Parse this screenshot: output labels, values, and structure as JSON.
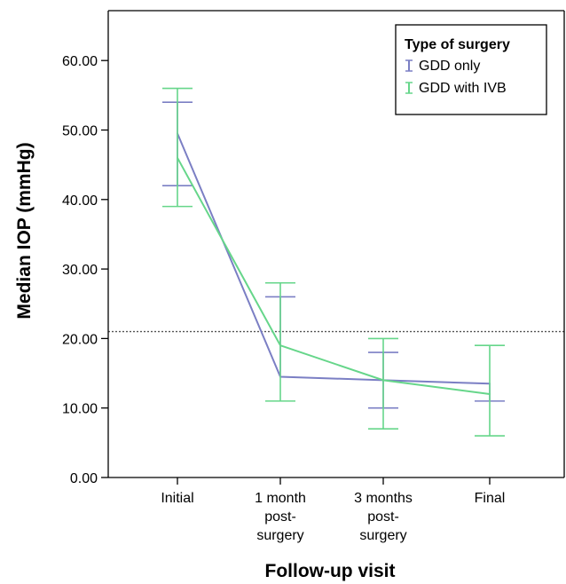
{
  "chart_data": {
    "type": "line",
    "xlabel": "Follow-up visit",
    "ylabel": "Median IOP (mmHg)",
    "ylim": [
      0,
      65
    ],
    "yticks": [
      "0.00",
      "10.00",
      "20.00",
      "30.00",
      "40.00",
      "50.00",
      "60.00"
    ],
    "categories": [
      [
        "Initial"
      ],
      [
        "1 month",
        "post-",
        "surgery"
      ],
      [
        "3 months",
        "post-",
        "surgery"
      ],
      [
        "Final"
      ]
    ],
    "reference_line": 21,
    "grid": false,
    "legend": {
      "title": "Type of surgery",
      "placement": "top-right"
    },
    "series": [
      {
        "name": "GDD only",
        "color": "#7b7fc4",
        "values": [
          49.5,
          14.5,
          14,
          13.5
        ],
        "error_high": [
          54,
          26,
          18,
          null
        ],
        "error_low": [
          42,
          null,
          10,
          11
        ]
      },
      {
        "name": "GDD with IVB",
        "color": "#66d68a",
        "values": [
          46,
          19,
          14,
          12
        ],
        "error_high": [
          56,
          28,
          20,
          19
        ],
        "error_low": [
          39,
          11,
          7,
          6
        ]
      }
    ]
  }
}
